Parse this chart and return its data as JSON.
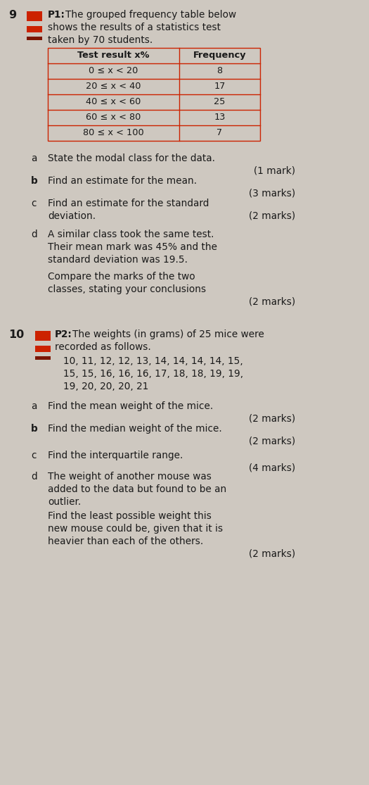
{
  "bg_color": "#cec8c0",
  "text_color": "#1a1a1a",
  "red_color": "#cc2200",
  "table_headers": [
    "Test result x%",
    "Frequency"
  ],
  "table_rows": [
    [
      "0 ≤ x < 20",
      "8"
    ],
    [
      "20 ≤ x < 40",
      "17"
    ],
    [
      "40 ≤ x < 60",
      "25"
    ],
    [
      "60 ≤ x < 80",
      "13"
    ],
    [
      "80 ≤ x < 100",
      "7"
    ]
  ],
  "fs": 9.8,
  "fs_small": 9.4
}
